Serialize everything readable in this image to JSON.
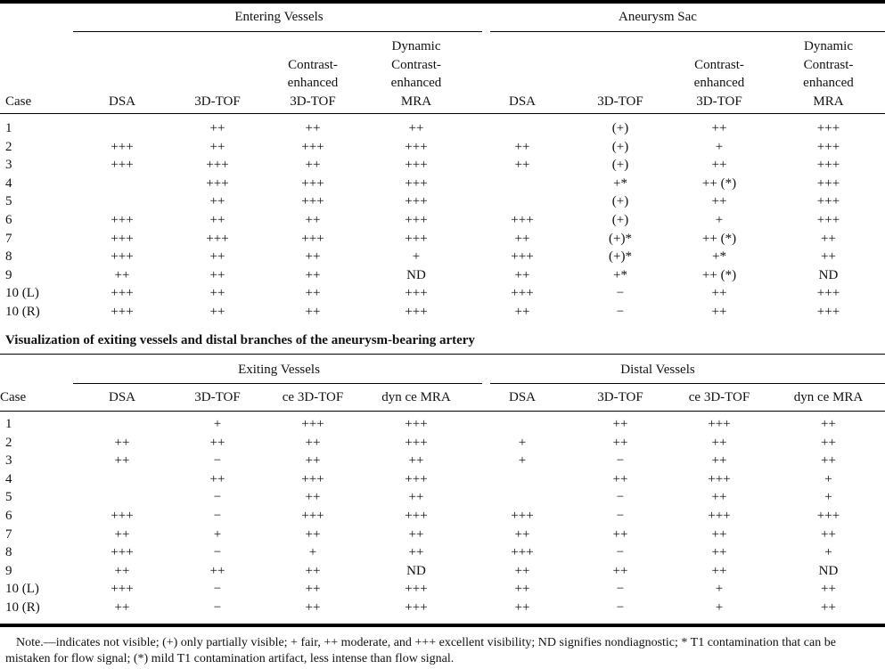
{
  "table1": {
    "group_headers": [
      "Entering Vessels",
      "Aneurysm Sac"
    ],
    "case_label": "Case",
    "columns": [
      [
        "DSA"
      ],
      [
        "3D-TOF"
      ],
      [
        "Contrast-",
        "enhanced",
        "3D-TOF"
      ],
      [
        "Dynamic",
        "Contrast-",
        "enhanced",
        "MRA"
      ],
      [
        "DSA"
      ],
      [
        "3D-TOF"
      ],
      [
        "Contrast-",
        "enhanced",
        "3D-TOF"
      ],
      [
        "Dynamic",
        "Contrast-",
        "enhanced",
        "MRA"
      ]
    ],
    "rows": [
      [
        "1",
        "",
        "++",
        "++",
        "++",
        "",
        "(+)",
        "++",
        "+++"
      ],
      [
        "2",
        "+++",
        "++",
        "+++",
        "+++",
        "++",
        "(+)",
        "+",
        "+++"
      ],
      [
        "3",
        "+++",
        "+++",
        "++",
        "+++",
        "++",
        "(+)",
        "++",
        "+++"
      ],
      [
        "4",
        "",
        "+++",
        "+++",
        "+++",
        "",
        "+*",
        "++ (*)",
        "+++"
      ],
      [
        "5",
        "",
        "++",
        "+++",
        "+++",
        "",
        "(+)",
        "++",
        "+++"
      ],
      [
        "6",
        "+++",
        "++",
        "++",
        "+++",
        "+++",
        "(+)",
        "+",
        "+++"
      ],
      [
        "7",
        "+++",
        "+++",
        "+++",
        "+++",
        "++",
        "(+)*",
        "++ (*)",
        "++"
      ],
      [
        "8",
        "+++",
        "++",
        "++",
        "+",
        "+++",
        "(+)*",
        "+*",
        "++"
      ],
      [
        "9",
        "++",
        "++",
        "++",
        "ND",
        "++",
        "+*",
        "++ (*)",
        "ND"
      ],
      [
        "10 (L)",
        "+++",
        "++",
        "++",
        "+++",
        "+++",
        "−",
        "++",
        "+++"
      ],
      [
        "10 (R)",
        "+++",
        "++",
        "++",
        "+++",
        "++",
        "−",
        "++",
        "+++"
      ]
    ]
  },
  "subtitle": "Visualization of exiting vessels and distal branches of the aneurysm-bearing artery",
  "table2": {
    "group_headers": [
      "Exiting Vessels",
      "Distal Vessels"
    ],
    "case_label": "Case",
    "columns": [
      "DSA",
      "3D-TOF",
      "ce 3D-TOF",
      "dyn ce MRA",
      "DSA",
      "3D-TOF",
      "ce 3D-TOF",
      "dyn ce MRA"
    ],
    "rows": [
      [
        "1",
        "",
        "+",
        "+++",
        "+++",
        "",
        "++",
        "+++",
        "++"
      ],
      [
        "2",
        "++",
        "++",
        "++",
        "+++",
        "+",
        "++",
        "++",
        "++"
      ],
      [
        "3",
        "++",
        "−",
        "++",
        "++",
        "+",
        "−",
        "++",
        "++"
      ],
      [
        "4",
        "",
        "++",
        "+++",
        "+++",
        "",
        "++",
        "+++",
        "+"
      ],
      [
        "5",
        "",
        "−",
        "++",
        "++",
        "",
        "−",
        "++",
        "+"
      ],
      [
        "6",
        "+++",
        "−",
        "+++",
        "+++",
        "+++",
        "−",
        "+++",
        "+++"
      ],
      [
        "7",
        "++",
        "+",
        "++",
        "++",
        "++",
        "++",
        "++",
        "++"
      ],
      [
        "8",
        "+++",
        "−",
        "+",
        "++",
        "+++",
        "−",
        "++",
        "+"
      ],
      [
        "9",
        "++",
        "++",
        "++",
        "ND",
        "++",
        "++",
        "++",
        "ND"
      ],
      [
        "10 (L)",
        "+++",
        "−",
        "++",
        "+++",
        "++",
        "−",
        "+",
        "++"
      ],
      [
        "10 (R)",
        "++",
        "−",
        "++",
        "+++",
        "++",
        "−",
        "+",
        "++"
      ]
    ]
  },
  "note": "Note.—indicates not visible; (+) only partially visible; + fair, ++ moderate, and +++ excellent visibility; ND signifies nondiagnostic; * T1 contamination that can be mistaken for flow signal; (*) mild T1 contamination artifact, less intense than flow signal."
}
